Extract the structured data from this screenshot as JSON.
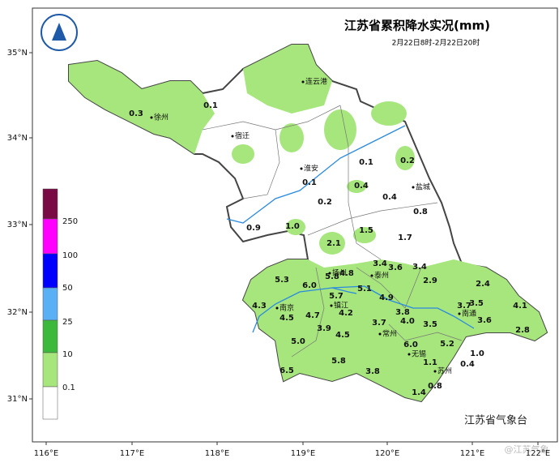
{
  "title": "江苏省累积降水实况(mm)",
  "subtitle": "2月22日8时-2月22日20时",
  "organization": "江苏省气象台",
  "watermark": "@江苏气象",
  "longitude_labels": [
    "116°E",
    "117°E",
    "118°E",
    "119°E",
    "120°E",
    "121°E",
    "122°E"
  ],
  "latitude_labels": [
    "35°N",
    "34°N",
    "33°N",
    "32°N",
    "31°N"
  ],
  "legend": {
    "labels": [
      "250",
      "100",
      "50",
      "25",
      "10",
      "0.1"
    ]
  },
  "cities": [
    "连云港",
    "徐州",
    "宿迁",
    "淮安",
    "盐城",
    "扬州",
    "泰州",
    "南京",
    "镇江",
    "常州",
    "南通",
    "无锡",
    "苏州"
  ],
  "station_values": [
    "0.1",
    "0.3",
    "0.1",
    "0.2",
    "0.1",
    "0.4",
    "0.4",
    "0.2",
    "0.8",
    "0.9",
    "1.0",
    "1.5",
    "1.7",
    "2.1",
    "3.4",
    "3.6",
    "3.4",
    "5.8",
    "4.8",
    "5.3",
    "6.0",
    "2.9",
    "2.4",
    "5.1",
    "5.7",
    "4.9",
    "3.7",
    "3.5",
    "4.1",
    "4.3",
    "4.7",
    "4.2",
    "3.8",
    "4.5",
    "3.7",
    "4.0",
    "3.5",
    "3.6",
    "3.9",
    "2.8",
    "4.5",
    "5.0",
    "6.0",
    "5.2",
    "1.0",
    "1.1",
    "0.4",
    "5.8",
    "6.5",
    "3.8",
    "0.8",
    "1.4"
  ]
}
